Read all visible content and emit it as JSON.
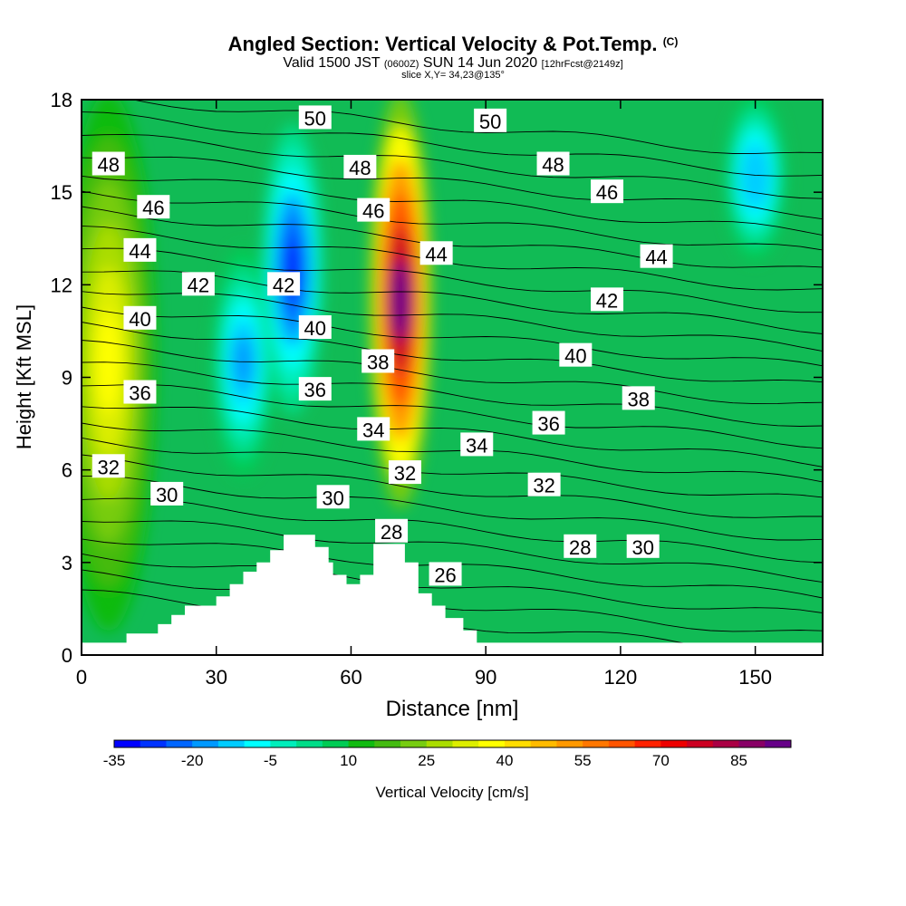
{
  "header": {
    "title_main": "Angled Section: Vertical Velocity & Pot.Temp.",
    "title_suffix": "(C)",
    "valid_a": "Valid 1500 JST",
    "valid_zulu": "(0600Z)",
    "valid_b": "SUN 14 Jun 2020",
    "forecast": "[12hrFcst@2149z]",
    "slice": "slice X,Y= 34,23@135°"
  },
  "chart_data": {
    "type": "heatmap",
    "xlabel": "Distance [nm]",
    "ylabel": "Height [Kft MSL]",
    "xlim": [
      0,
      165
    ],
    "ylim": [
      0,
      18
    ],
    "x_ticks": [
      0,
      30,
      60,
      90,
      120,
      150
    ],
    "y_ticks": [
      0,
      3,
      6,
      9,
      12,
      15,
      18
    ],
    "colorbar": {
      "label": "Vertical Velocity [cm/s]",
      "min": -35,
      "max": 95,
      "step": 5,
      "tick_values": [
        -35,
        -20,
        -5,
        10,
        25,
        40,
        55,
        70,
        85
      ],
      "colors": [
        "#0000ff",
        "#0033ff",
        "#0066ff",
        "#0099ff",
        "#00ccff",
        "#00ffff",
        "#00eebb",
        "#00dd88",
        "#00cc55",
        "#11bb11",
        "#44bb11",
        "#77cc11",
        "#aadd00",
        "#ddee00",
        "#ffff00",
        "#ffdd00",
        "#ffbb00",
        "#ff9900",
        "#ff7700",
        "#ff5500",
        "#ff2200",
        "#ee0000",
        "#cc0022",
        "#aa0044",
        "#880066",
        "#660088"
      ]
    },
    "vertical_velocity_features": [
      {
        "x_center": 6,
        "ybottom": 1,
        "ytop": 18,
        "value": 35
      },
      {
        "x_center": 36,
        "ybottom": 6,
        "ytop": 13,
        "value": -20
      },
      {
        "x_center": 47,
        "ybottom": 8,
        "ytop": 17,
        "value": -30
      },
      {
        "x_center": 71,
        "ybottom": 5,
        "ytop": 18,
        "value": 92
      },
      {
        "x_center": 150,
        "ybottom": 13,
        "ytop": 18,
        "value": -15
      }
    ],
    "theta_contours": [
      26,
      27,
      28,
      29,
      30,
      31,
      32,
      33,
      34,
      35,
      36,
      37,
      38,
      39,
      40,
      41,
      42,
      43,
      44,
      45,
      46,
      47,
      48,
      49,
      50,
      51,
      52
    ],
    "contour_labels": [
      {
        "text": "48",
        "x": 6,
        "y": 15.9
      },
      {
        "text": "46",
        "x": 16,
        "y": 14.5
      },
      {
        "text": "44",
        "x": 13,
        "y": 13.1
      },
      {
        "text": "42",
        "x": 26,
        "y": 12.0
      },
      {
        "text": "40",
        "x": 13,
        "y": 10.9
      },
      {
        "text": "36",
        "x": 13,
        "y": 8.5
      },
      {
        "text": "32",
        "x": 6,
        "y": 6.1
      },
      {
        "text": "30",
        "x": 19,
        "y": 5.2
      },
      {
        "text": "50",
        "x": 52,
        "y": 17.4
      },
      {
        "text": "48",
        "x": 62,
        "y": 15.8
      },
      {
        "text": "46",
        "x": 65,
        "y": 14.4
      },
      {
        "text": "42",
        "x": 45,
        "y": 12.0
      },
      {
        "text": "40",
        "x": 52,
        "y": 10.6
      },
      {
        "text": "36",
        "x": 52,
        "y": 8.6
      },
      {
        "text": "38",
        "x": 66,
        "y": 9.5
      },
      {
        "text": "34",
        "x": 65,
        "y": 7.3
      },
      {
        "text": "32",
        "x": 72,
        "y": 5.9
      },
      {
        "text": "30",
        "x": 56,
        "y": 5.1
      },
      {
        "text": "28",
        "x": 69,
        "y": 4.0
      },
      {
        "text": "26",
        "x": 81,
        "y": 2.6
      },
      {
        "text": "44",
        "x": 79,
        "y": 13.0
      },
      {
        "text": "50",
        "x": 91,
        "y": 17.3
      },
      {
        "text": "48",
        "x": 105,
        "y": 15.9
      },
      {
        "text": "46",
        "x": 117,
        "y": 15.0
      },
      {
        "text": "44",
        "x": 128,
        "y": 12.9
      },
      {
        "text": "42",
        "x": 117,
        "y": 11.5
      },
      {
        "text": "40",
        "x": 110,
        "y": 9.7
      },
      {
        "text": "38",
        "x": 124,
        "y": 8.3
      },
      {
        "text": "36",
        "x": 104,
        "y": 7.5
      },
      {
        "text": "34",
        "x": 88,
        "y": 6.8
      },
      {
        "text": "32",
        "x": 103,
        "y": 5.5
      },
      {
        "text": "28",
        "x": 111,
        "y": 3.5
      },
      {
        "text": "30",
        "x": 125,
        "y": 3.5
      }
    ],
    "terrain": [
      [
        0,
        0.4
      ],
      [
        10,
        0.4
      ],
      [
        10,
        0.7
      ],
      [
        17,
        0.7
      ],
      [
        17,
        1.0
      ],
      [
        20,
        1.0
      ],
      [
        20,
        1.3
      ],
      [
        23,
        1.3
      ],
      [
        23,
        1.6
      ],
      [
        30,
        1.6
      ],
      [
        30,
        1.9
      ],
      [
        33,
        1.9
      ],
      [
        33,
        2.3
      ],
      [
        36,
        2.3
      ],
      [
        36,
        2.7
      ],
      [
        39,
        2.7
      ],
      [
        39,
        3.0
      ],
      [
        42,
        3.0
      ],
      [
        42,
        3.4
      ],
      [
        45,
        3.4
      ],
      [
        45,
        3.9
      ],
      [
        52,
        3.9
      ],
      [
        52,
        3.5
      ],
      [
        55,
        3.5
      ],
      [
        55,
        3.0
      ],
      [
        56,
        3.0
      ],
      [
        56,
        2.6
      ],
      [
        59,
        2.6
      ],
      [
        59,
        2.3
      ],
      [
        62,
        2.3
      ],
      [
        62,
        2.6
      ],
      [
        65,
        2.6
      ],
      [
        65,
        3.6
      ],
      [
        72,
        3.6
      ],
      [
        72,
        3.0
      ],
      [
        75,
        3.0
      ],
      [
        75,
        2.0
      ],
      [
        78,
        2.0
      ],
      [
        78,
        1.6
      ],
      [
        81,
        1.6
      ],
      [
        81,
        1.2
      ],
      [
        85,
        1.2
      ],
      [
        85,
        0.8
      ],
      [
        88,
        0.8
      ],
      [
        88,
        0.4
      ],
      [
        165,
        0.4
      ]
    ]
  }
}
